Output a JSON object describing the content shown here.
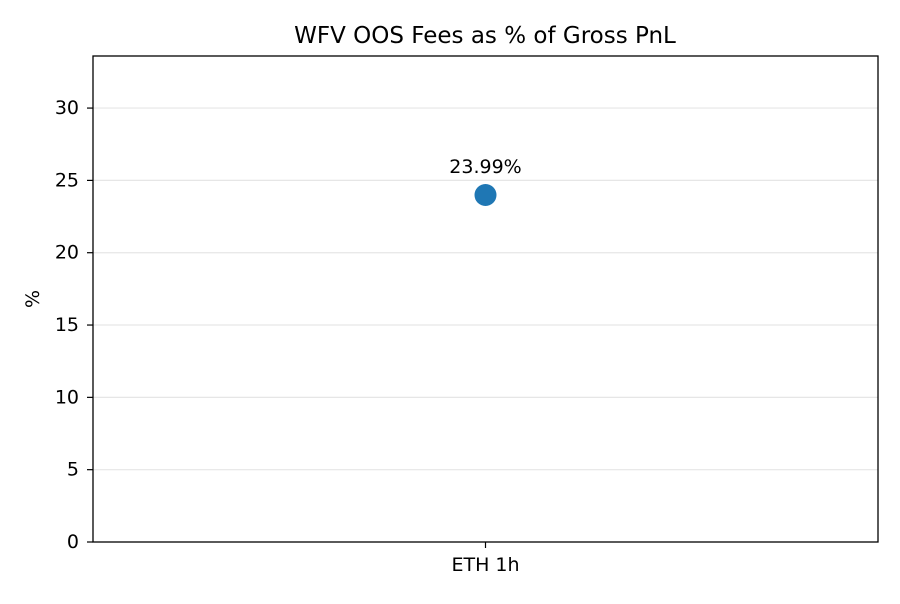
{
  "chart_data": {
    "type": "scatter",
    "title": "WFV OOS Fees as % of Gross PnL",
    "xlabel": "",
    "ylabel": "%",
    "categories": [
      "ETH 1h"
    ],
    "series": [
      {
        "values": [
          23.99
        ],
        "data_labels": [
          "23.99%"
        ],
        "color": "#1f77b4"
      }
    ],
    "ylim": [
      0,
      33.6
    ],
    "yticks": [
      0,
      5,
      10,
      15,
      20,
      25,
      30
    ],
    "grid": "y",
    "legend": "none"
  }
}
